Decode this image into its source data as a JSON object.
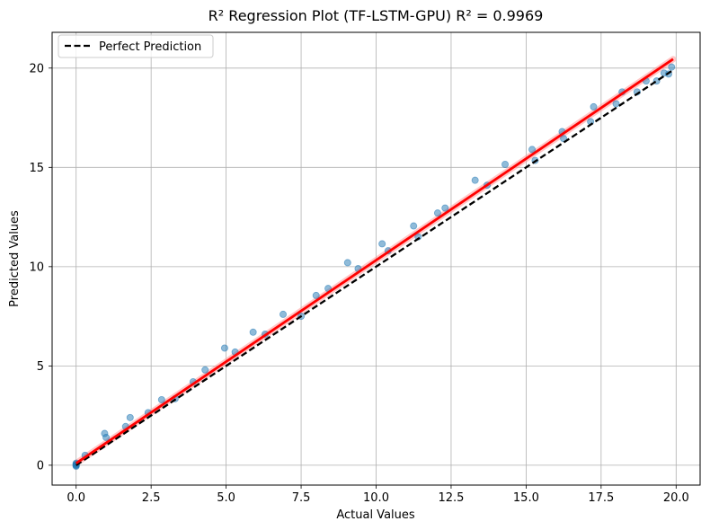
{
  "chart_data": {
    "type": "scatter",
    "title": "R² Regression Plot (TF-LSTM-GPU) R² = 0.9969",
    "xlabel": "Actual Values",
    "ylabel": "Predicted Values",
    "xlim": [
      -0.8,
      20.8
    ],
    "ylim": [
      -1.0,
      21.8
    ],
    "xticks": [
      0.0,
      2.5,
      5.0,
      7.5,
      10.0,
      12.5,
      15.0,
      17.5,
      20.0
    ],
    "xtick_labels": [
      "0.0",
      "2.5",
      "5.0",
      "7.5",
      "10.0",
      "12.5",
      "15.0",
      "17.5",
      "20.0"
    ],
    "yticks": [
      0,
      5,
      10,
      15,
      20
    ],
    "ytick_labels": [
      "0",
      "5",
      "10",
      "15",
      "20"
    ],
    "grid": true,
    "legend": {
      "position": "top-left",
      "entries": [
        "Perfect Prediction"
      ]
    },
    "colors": {
      "points": "#1f77b4",
      "perfect_line": "#000000",
      "fit_line": "#ff0000",
      "fit_band": "#ff9999",
      "grid": "#b0b0b0"
    },
    "series": [
      {
        "name": "Predictions",
        "kind": "scatter",
        "x": [
          0.0,
          0.0,
          0.0,
          0.0,
          0.0,
          0.3,
          0.95,
          1.0,
          1.65,
          1.8,
          2.4,
          2.85,
          3.3,
          3.9,
          4.3,
          4.95,
          5.3,
          5.9,
          6.3,
          6.9,
          7.5,
          8.0,
          8.4,
          9.05,
          9.4,
          10.2,
          10.4,
          11.25,
          11.4,
          12.05,
          12.3,
          13.3,
          13.7,
          14.3,
          15.2,
          15.3,
          16.2,
          16.25,
          17.15,
          17.25,
          18.0,
          18.2,
          18.7,
          19.0,
          19.35,
          19.6,
          19.75,
          19.85
        ],
        "y": [
          0.0,
          0.05,
          -0.05,
          0.1,
          0.0,
          0.5,
          1.6,
          1.4,
          1.95,
          2.4,
          2.65,
          3.3,
          3.35,
          4.2,
          4.8,
          5.9,
          5.7,
          6.7,
          6.6,
          7.6,
          7.5,
          8.55,
          8.9,
          10.2,
          9.9,
          11.15,
          10.8,
          12.05,
          11.5,
          12.7,
          12.95,
          14.35,
          14.1,
          15.15,
          15.9,
          15.35,
          16.8,
          16.45,
          17.3,
          18.05,
          18.2,
          18.8,
          18.8,
          19.35,
          19.35,
          19.75,
          19.7,
          20.05
        ]
      },
      {
        "name": "Perfect Prediction",
        "kind": "line",
        "x": [
          0.0,
          19.9
        ],
        "y": [
          0.0,
          19.9
        ]
      },
      {
        "name": "Regression Fit",
        "kind": "line",
        "x": [
          0.0,
          19.9
        ],
        "y": [
          0.1,
          20.45
        ]
      }
    ]
  }
}
